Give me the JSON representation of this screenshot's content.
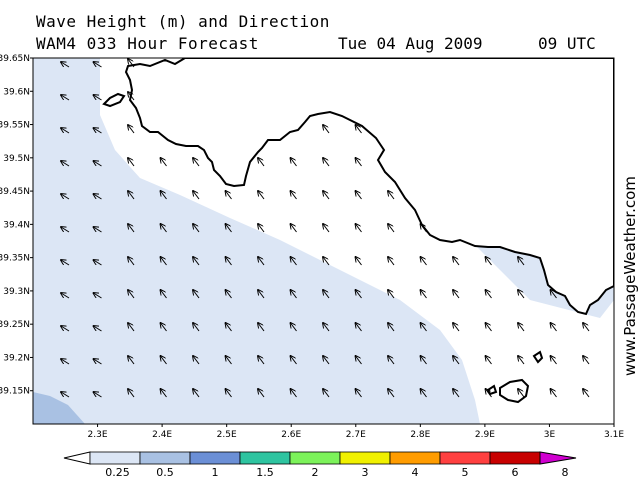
{
  "header": {
    "title": "Wave Height (m) and Direction",
    "subtitle": "WAM4 033 Hour Forecast",
    "date": "Tue 04 Aug 2009",
    "time": "09 UTC"
  },
  "watermark": "www.PassageWeather.com",
  "map": {
    "lon_range": [
      2.2,
      3.1
    ],
    "lat_range": [
      39.1,
      39.65
    ],
    "lon_ticks": [
      "2.3E",
      "2.4E",
      "2.5E",
      "2.6E",
      "2.7E",
      "2.8E",
      "2.9E",
      "3E",
      "3.1E"
    ],
    "lat_ticks": [
      "39.65N",
      "39.6N",
      "39.55N",
      "39.5N",
      "39.45N",
      "39.4N",
      "39.35N",
      "39.3N",
      "39.25N",
      "39.2N",
      "39.15N"
    ],
    "wave_direction": "from south-east (arrows point north-west)",
    "colors": {
      "land": "#ffffff",
      "sea_0_0.25": "#ffffff",
      "sea_0.25_0.5": "#dce6f5",
      "sea_0.5_1": "#a9c1e3",
      "coastline": "#000000"
    }
  },
  "colorbar": {
    "labels": [
      "0.25",
      "0.5",
      "1",
      "1.5",
      "2",
      "3",
      "4",
      "5",
      "6",
      "8"
    ],
    "colors": [
      "#ffffff",
      "#dce6f5",
      "#a9c1e3",
      "#6b8fd6",
      "#2ec4a0",
      "#7cf25a",
      "#f0f000",
      "#ff9c00",
      "#ff4040",
      "#c80000",
      "#d000d0"
    ]
  }
}
